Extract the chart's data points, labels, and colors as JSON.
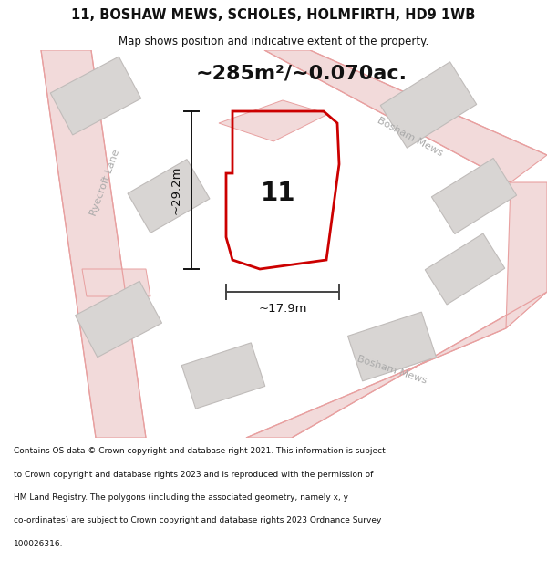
{
  "title_line1": "11, BOSHAW MEWS, SCHOLES, HOLMFIRTH, HD9 1WB",
  "title_line2": "Map shows position and indicative extent of the property.",
  "area_text": "~285m²/~0.070ac.",
  "dim_height": "~29.2m",
  "dim_width": "~17.9m",
  "property_number": "11",
  "footer_lines": [
    "Contains OS data © Crown copyright and database right 2021. This information is subject",
    "to Crown copyright and database rights 2023 and is reproduced with the permission of",
    "HM Land Registry. The polygons (including the associated geometry, namely x, y",
    "co-ordinates) are subject to Crown copyright and database rights 2023 Ordnance Survey",
    "100026316."
  ],
  "bg_color": "#ffffff",
  "map_bg": "#f9f8f8",
  "road_line_color": "#e8a0a0",
  "road_fill_color": "#f2dada",
  "building_color": "#d8d5d3",
  "building_edge": "#c0bcba",
  "property_color": "#cc0000",
  "dim_color": "#111111",
  "road_label_color": "#aaaaaa",
  "title_color": "#111111",
  "footer_color": "#111111"
}
